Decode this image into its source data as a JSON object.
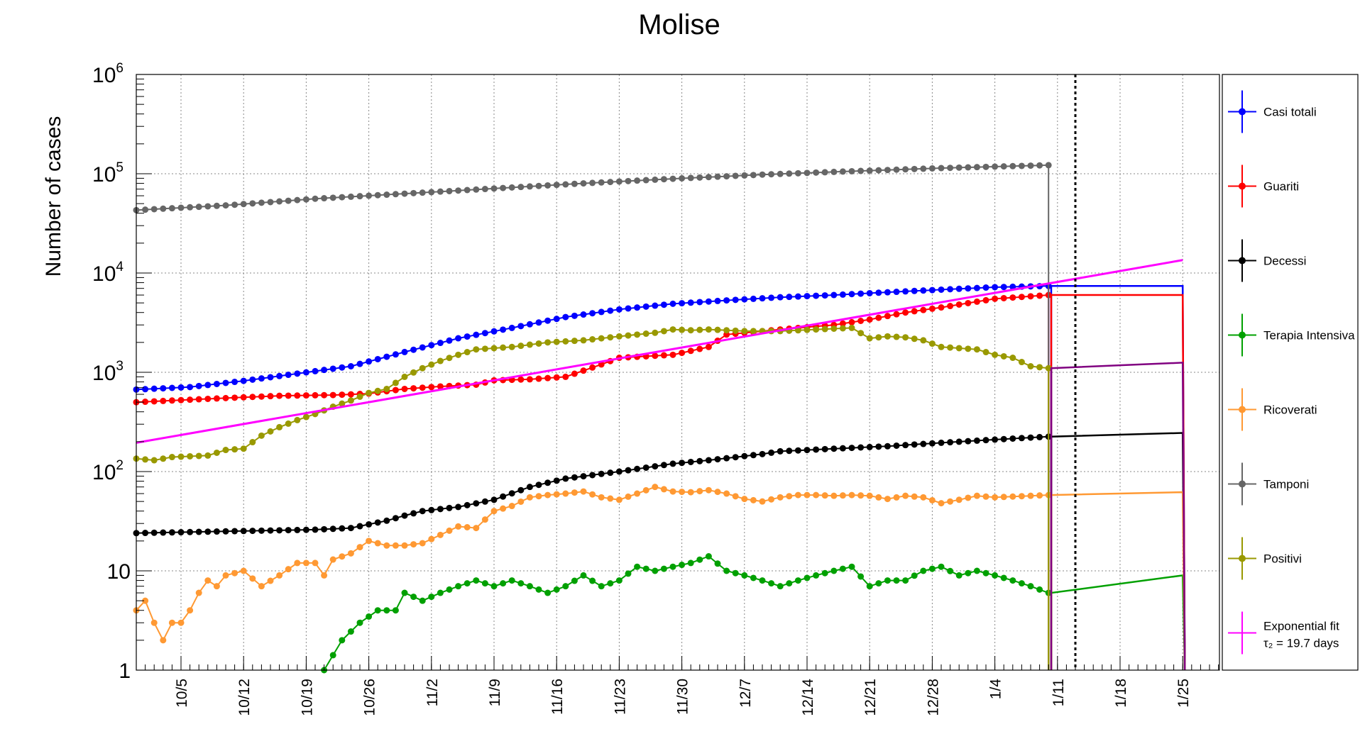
{
  "chart_data": {
    "type": "line",
    "title": "Molise",
    "ylabel": "Number of cases",
    "xlabel": "",
    "yscale": "log",
    "ylim": [
      1,
      1000000
    ],
    "x_start_date": "2020-09-30",
    "x_ticks": [
      {
        "date": "2020-10-05",
        "label": "10/5"
      },
      {
        "date": "2020-10-12",
        "label": "10/12"
      },
      {
        "date": "2020-10-19",
        "label": "10/19"
      },
      {
        "date": "2020-10-26",
        "label": "10/26"
      },
      {
        "date": "2020-11-02",
        "label": "11/2"
      },
      {
        "date": "2020-11-09",
        "label": "11/9"
      },
      {
        "date": "2020-11-16",
        "label": "11/16"
      },
      {
        "date": "2020-11-23",
        "label": "11/23"
      },
      {
        "date": "2020-11-30",
        "label": "11/30"
      },
      {
        "date": "2020-12-07",
        "label": "12/7"
      },
      {
        "date": "2020-12-14",
        "label": "12/14"
      },
      {
        "date": "2020-12-21",
        "label": "12/21"
      },
      {
        "date": "2020-12-28",
        "label": "12/28"
      },
      {
        "date": "2021-01-04",
        "label": "1/4"
      },
      {
        "date": "2021-01-11",
        "label": "1/11"
      },
      {
        "date": "2021-01-18",
        "label": "1/18"
      },
      {
        "date": "2021-01-25",
        "label": "1/25"
      }
    ],
    "y_ticks": [
      {
        "value": 1,
        "label": "1"
      },
      {
        "value": 10,
        "label": "10"
      },
      {
        "value": 100,
        "label": "10",
        "exp": "2"
      },
      {
        "value": 1000,
        "label": "10",
        "exp": "3"
      },
      {
        "value": 10000,
        "label": "10",
        "exp": "4"
      },
      {
        "value": 100000,
        "label": "10",
        "exp": "5"
      },
      {
        "value": 1000000,
        "label": "10",
        "exp": "6"
      }
    ],
    "grid": true,
    "legend_position": "right",
    "vertical_marker_date": "2021-01-13",
    "series": [
      {
        "name": "Casi totali",
        "color": "#0000ff",
        "anchors": [
          [
            0,
            670
          ],
          [
            6,
            710
          ],
          [
            12,
            820
          ],
          [
            18,
            970
          ],
          [
            24,
            1150
          ],
          [
            30,
            1600
          ],
          [
            36,
            2200
          ],
          [
            42,
            2800
          ],
          [
            48,
            3600
          ],
          [
            54,
            4300
          ],
          [
            60,
            4900
          ],
          [
            66,
            5300
          ],
          [
            72,
            5700
          ],
          [
            78,
            6000
          ],
          [
            84,
            6400
          ],
          [
            90,
            6800
          ],
          [
            96,
            7200
          ],
          [
            102,
            7400
          ]
        ],
        "proj_end": 7400
      },
      {
        "name": "Guariti",
        "color": "#ff0000",
        "anchors": [
          [
            0,
            500
          ],
          [
            8,
            540
          ],
          [
            16,
            580
          ],
          [
            22,
            590
          ],
          [
            26,
            610
          ],
          [
            30,
            680
          ],
          [
            34,
            720
          ],
          [
            38,
            750
          ],
          [
            40,
            830
          ],
          [
            44,
            850
          ],
          [
            48,
            900
          ],
          [
            52,
            1200
          ],
          [
            54,
            1400
          ],
          [
            60,
            1500
          ],
          [
            64,
            1800
          ],
          [
            66,
            2400
          ],
          [
            72,
            2700
          ],
          [
            78,
            3000
          ],
          [
            82,
            3400
          ],
          [
            86,
            4000
          ],
          [
            90,
            4500
          ],
          [
            96,
            5500
          ],
          [
            102,
            6000
          ]
        ],
        "proj_end": 6000
      },
      {
        "name": "Decessi",
        "color": "#000000",
        "anchors": [
          [
            0,
            24
          ],
          [
            10,
            25
          ],
          [
            20,
            26
          ],
          [
            24,
            27
          ],
          [
            28,
            32
          ],
          [
            30,
            36
          ],
          [
            32,
            40
          ],
          [
            36,
            44
          ],
          [
            40,
            52
          ],
          [
            44,
            70
          ],
          [
            48,
            85
          ],
          [
            54,
            100
          ],
          [
            60,
            120
          ],
          [
            64,
            130
          ],
          [
            70,
            150
          ],
          [
            72,
            160
          ],
          [
            78,
            170
          ],
          [
            84,
            180
          ],
          [
            90,
            195
          ],
          [
            96,
            210
          ],
          [
            102,
            225
          ]
        ],
        "proj_end": 245
      },
      {
        "name": "Terapia Intensiva",
        "color": "#00a000",
        "anchors": [
          [
            21,
            1
          ],
          [
            23,
            2
          ],
          [
            25,
            3
          ],
          [
            27,
            4
          ],
          [
            29,
            4
          ],
          [
            30,
            6
          ],
          [
            32,
            5
          ],
          [
            34,
            6
          ],
          [
            36,
            7
          ],
          [
            38,
            8
          ],
          [
            40,
            7
          ],
          [
            42,
            8
          ],
          [
            44,
            7
          ],
          [
            46,
            6
          ],
          [
            48,
            7
          ],
          [
            50,
            9
          ],
          [
            52,
            7
          ],
          [
            54,
            8
          ],
          [
            56,
            11
          ],
          [
            58,
            10
          ],
          [
            60,
            11
          ],
          [
            62,
            12
          ],
          [
            64,
            14
          ],
          [
            66,
            10
          ],
          [
            68,
            9
          ],
          [
            70,
            8
          ],
          [
            72,
            7
          ],
          [
            74,
            8
          ],
          [
            76,
            9
          ],
          [
            78,
            10
          ],
          [
            80,
            11
          ],
          [
            82,
            7
          ],
          [
            84,
            8
          ],
          [
            86,
            8
          ],
          [
            88,
            10
          ],
          [
            90,
            11
          ],
          [
            92,
            9
          ],
          [
            94,
            10
          ],
          [
            96,
            9
          ],
          [
            98,
            8
          ],
          [
            100,
            7
          ],
          [
            102,
            6
          ]
        ],
        "proj_end": 9
      },
      {
        "name": "Ricoverati",
        "color": "#ff9933",
        "anchors": [
          [
            0,
            4
          ],
          [
            1,
            5
          ],
          [
            2,
            3
          ],
          [
            3,
            2
          ],
          [
            4,
            3
          ],
          [
            5,
            3
          ],
          [
            6,
            4
          ],
          [
            7,
            6
          ],
          [
            8,
            8
          ],
          [
            9,
            7
          ],
          [
            10,
            9
          ],
          [
            12,
            10
          ],
          [
            14,
            7
          ],
          [
            16,
            9
          ],
          [
            18,
            12
          ],
          [
            20,
            12
          ],
          [
            21,
            9
          ],
          [
            22,
            13
          ],
          [
            24,
            15
          ],
          [
            26,
            20
          ],
          [
            28,
            18
          ],
          [
            30,
            18
          ],
          [
            32,
            19
          ],
          [
            34,
            23
          ],
          [
            36,
            28
          ],
          [
            38,
            27
          ],
          [
            40,
            40
          ],
          [
            42,
            45
          ],
          [
            44,
            55
          ],
          [
            46,
            58
          ],
          [
            48,
            60
          ],
          [
            50,
            63
          ],
          [
            52,
            55
          ],
          [
            54,
            52
          ],
          [
            56,
            60
          ],
          [
            58,
            70
          ],
          [
            60,
            63
          ],
          [
            62,
            62
          ],
          [
            64,
            65
          ],
          [
            66,
            60
          ],
          [
            68,
            53
          ],
          [
            70,
            50
          ],
          [
            72,
            55
          ],
          [
            74,
            58
          ],
          [
            76,
            58
          ],
          [
            78,
            57
          ],
          [
            80,
            58
          ],
          [
            82,
            57
          ],
          [
            84,
            53
          ],
          [
            86,
            57
          ],
          [
            88,
            55
          ],
          [
            90,
            48
          ],
          [
            92,
            52
          ],
          [
            94,
            57
          ],
          [
            96,
            55
          ],
          [
            98,
            56
          ],
          [
            100,
            57
          ],
          [
            102,
            58
          ]
        ],
        "proj_end": 62
      },
      {
        "name": "Tamponi",
        "color": "#666666",
        "anchors": [
          [
            0,
            43000
          ],
          [
            10,
            48000
          ],
          [
            20,
            56000
          ],
          [
            30,
            63000
          ],
          [
            40,
            71000
          ],
          [
            50,
            80000
          ],
          [
            60,
            89000
          ],
          [
            70,
            98000
          ],
          [
            80,
            106000
          ],
          [
            90,
            114000
          ],
          [
            102,
            122000
          ]
        ],
        "proj_end": null
      },
      {
        "name": "Positivi",
        "color": "#999900",
        "anchors": [
          [
            0,
            135
          ],
          [
            2,
            130
          ],
          [
            4,
            140
          ],
          [
            8,
            145
          ],
          [
            10,
            165
          ],
          [
            12,
            170
          ],
          [
            14,
            230
          ],
          [
            16,
            280
          ],
          [
            18,
            330
          ],
          [
            20,
            380
          ],
          [
            22,
            450
          ],
          [
            24,
            520
          ],
          [
            26,
            620
          ],
          [
            28,
            680
          ],
          [
            30,
            900
          ],
          [
            32,
            1100
          ],
          [
            34,
            1300
          ],
          [
            36,
            1500
          ],
          [
            38,
            1700
          ],
          [
            42,
            1800
          ],
          [
            46,
            2000
          ],
          [
            50,
            2100
          ],
          [
            54,
            2300
          ],
          [
            58,
            2500
          ],
          [
            60,
            2700
          ],
          [
            62,
            2650
          ],
          [
            64,
            2700
          ],
          [
            66,
            2650
          ],
          [
            68,
            2600
          ],
          [
            72,
            2600
          ],
          [
            76,
            2700
          ],
          [
            80,
            2800
          ],
          [
            82,
            2200
          ],
          [
            84,
            2300
          ],
          [
            86,
            2250
          ],
          [
            88,
            2100
          ],
          [
            90,
            1800
          ],
          [
            92,
            1750
          ],
          [
            94,
            1700
          ],
          [
            96,
            1500
          ],
          [
            98,
            1400
          ],
          [
            100,
            1150
          ],
          [
            102,
            1100
          ]
        ],
        "proj_end": 1250
      },
      {
        "name": "Exponential fit",
        "name_line2": "τ₂ = 19.7 days",
        "color": "#ff00ff",
        "fit_start": [
          0,
          195
        ],
        "fit_end": [
          117,
          13500
        ]
      }
    ],
    "projection_end_day": 117
  }
}
